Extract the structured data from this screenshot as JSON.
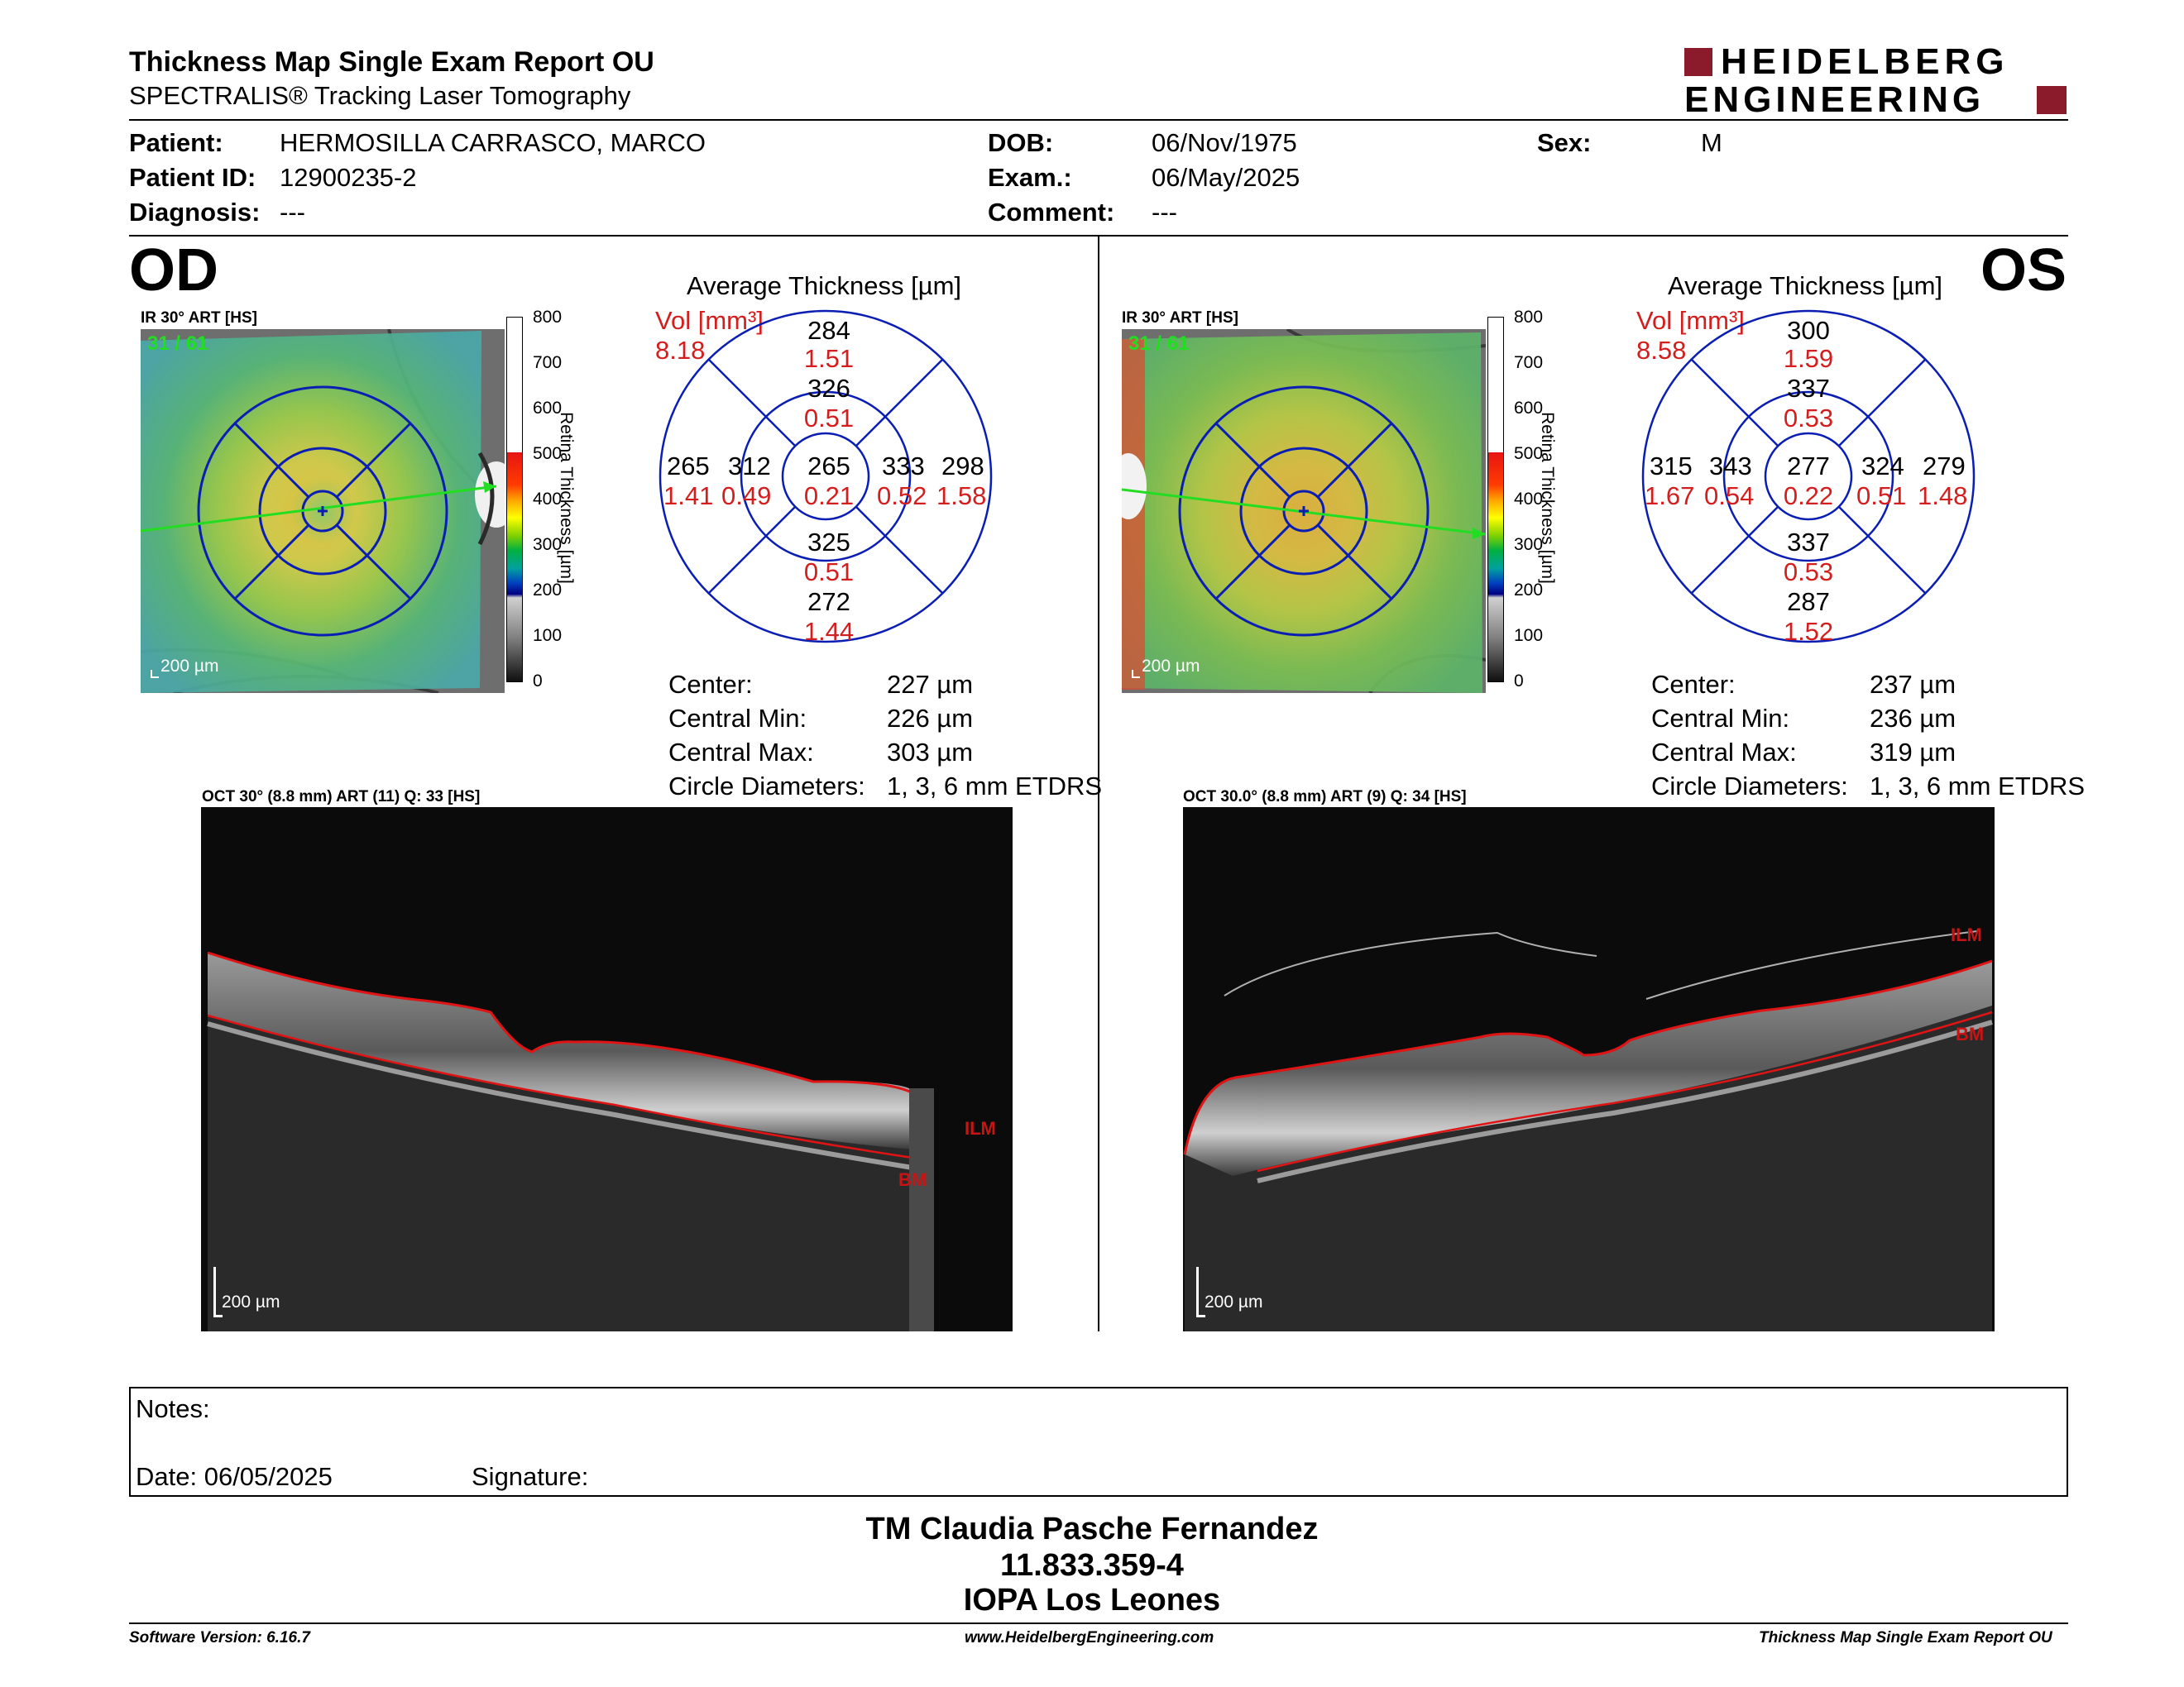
{
  "header": {
    "title": "Thickness Map Single Exam Report OU",
    "subtitle": "SPECTRALIS® Tracking Laser Tomography",
    "logo_line1": "HEIDELBERG",
    "logo_line2": "ENGINEERING",
    "brand_color": "#8b1a2b"
  },
  "patient": {
    "patient_label": "Patient:",
    "patient_value": "HERMOSILLA CARRASCO, MARCO",
    "id_label": "Patient ID:",
    "id_value": "12900235-2",
    "diagnosis_label": "Diagnosis:",
    "diagnosis_value": "---",
    "dob_label": "DOB:",
    "dob_value": "06/Nov/1975",
    "exam_label": "Exam.:",
    "exam_value": "06/May/2025",
    "comment_label": "Comment:",
    "comment_value": "---",
    "sex_label": "Sex:",
    "sex_value": "M"
  },
  "od": {
    "eye": "OD",
    "ir_label": "IR 30° ART [HS]",
    "frames": "31 / 61",
    "scale_label": "200 µm",
    "colorbar_ticks": [
      "800",
      "700",
      "600",
      "500",
      "400",
      "300",
      "200",
      "100",
      "0"
    ],
    "colorbar_title": "Retina Thickness [µm]",
    "avg_title": "Average Thickness [µm]",
    "vol_label": "Vol [mm³]",
    "vol_total": "8.18",
    "sectors": {
      "center": {
        "t": "265",
        "v": "0.21"
      },
      "inner_sup": {
        "t": "326",
        "v": "0.51"
      },
      "inner_inf": {
        "t": "325",
        "v": "0.51"
      },
      "inner_left": {
        "t": "312",
        "v": "0.49"
      },
      "inner_right": {
        "t": "333",
        "v": "0.52"
      },
      "outer_sup": {
        "t": "284",
        "v": "1.51"
      },
      "outer_inf": {
        "t": "272",
        "v": "1.44"
      },
      "outer_left": {
        "t": "265",
        "v": "1.41"
      },
      "outer_right": {
        "t": "298",
        "v": "1.58"
      }
    },
    "stats": [
      {
        "label": "Center:",
        "value": "227 µm"
      },
      {
        "label": "Central Min:",
        "value": "226 µm"
      },
      {
        "label": "Central Max:",
        "value": "303 µm"
      },
      {
        "label": "Circle Diameters:",
        "value": "1, 3, 6 mm ETDRS"
      }
    ],
    "oct_label": "OCT 30° (8.8 mm) ART (11) Q: 33 [HS]",
    "oct_scale": "200 µm",
    "ilm": "ILM",
    "bm": "BM"
  },
  "os": {
    "eye": "OS",
    "ir_label": "IR 30° ART [HS]",
    "frames": "31 / 61",
    "scale_label": "200 µm",
    "colorbar_ticks": [
      "800",
      "700",
      "600",
      "500",
      "400",
      "300",
      "200",
      "100",
      "0"
    ],
    "colorbar_title": "Retina Thickness [µm]",
    "avg_title": "Average Thickness [µm]",
    "vol_label": "Vol [mm³]",
    "vol_total": "8.58",
    "sectors": {
      "center": {
        "t": "277",
        "v": "0.22"
      },
      "inner_sup": {
        "t": "337",
        "v": "0.53"
      },
      "inner_inf": {
        "t": "337",
        "v": "0.53"
      },
      "inner_left": {
        "t": "343",
        "v": "0.54"
      },
      "inner_right": {
        "t": "324",
        "v": "0.51"
      },
      "outer_sup": {
        "t": "300",
        "v": "1.59"
      },
      "outer_inf": {
        "t": "287",
        "v": "1.52"
      },
      "outer_left": {
        "t": "315",
        "v": "1.67"
      },
      "outer_right": {
        "t": "279",
        "v": "1.48"
      }
    },
    "stats": [
      {
        "label": "Center:",
        "value": "237 µm"
      },
      {
        "label": "Central Min:",
        "value": "236 µm"
      },
      {
        "label": "Central Max:",
        "value": "319 µm"
      },
      {
        "label": "Circle Diameters:",
        "value": "1, 3, 6 mm ETDRS"
      }
    ],
    "oct_label": "OCT 30.0° (8.8 mm) ART (9) Q: 34 [HS]",
    "oct_scale": "200 µm",
    "ilm": "ILM",
    "bm": "BM"
  },
  "notes": {
    "notes_label": "Notes:",
    "date_label": "Date: 06/05/2025",
    "signature_label": "Signature:"
  },
  "signature_block": {
    "name": "TM Claudia Pasche Fernandez",
    "id": "11.833.359-4",
    "place": "IOPA Los Leones"
  },
  "footer": {
    "software": "Software Version: 6.16.7",
    "website": "www.HeidelbergEngineering.com",
    "report_name": "Thickness Map Single Exam Report OU"
  }
}
